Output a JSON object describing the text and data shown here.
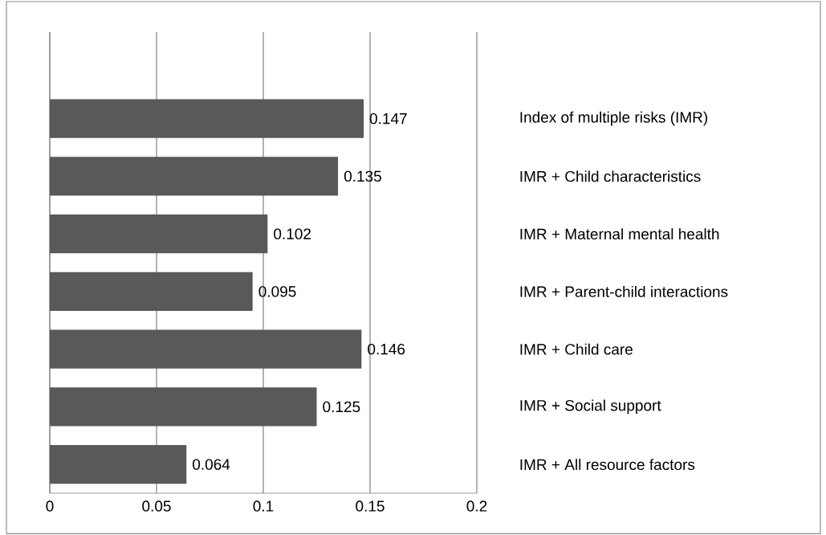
{
  "chart_data": {
    "type": "bar",
    "orientation": "horizontal",
    "categories": [
      null,
      "Index of multiple risks (IMR)",
      "IMR + Child characteristics",
      "IMR + Maternal mental health",
      "IMR + Parent-child interactions",
      "IMR + Child care",
      "IMR + Social support",
      "IMR + All resource factors"
    ],
    "values": [
      null,
      0.147,
      0.135,
      0.102,
      0.095,
      0.146,
      0.125,
      0.064
    ],
    "color": "#595959",
    "xlim": [
      0,
      0.2
    ],
    "xticks": [
      0,
      0.05,
      0.1,
      0.15,
      0.2
    ],
    "grid": "x",
    "data_labels": true
  }
}
